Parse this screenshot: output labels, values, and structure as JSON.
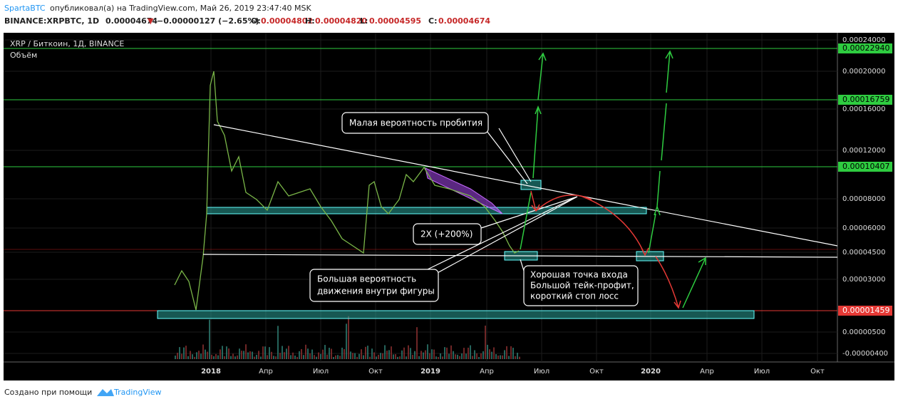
{
  "header": {
    "author": "SpartaBTC",
    "published": "опубликовал(а) на TradingView.com, Май 26, 2019 23:47:40 MSK",
    "symbol": "BINANCE:XRPBTC, 1D",
    "last": "0.00004674",
    "change": "−0.00000127 (−2.65%)",
    "open_label": "O:",
    "open": "0.00004802",
    "high_label": "H:",
    "high": "0.00004820",
    "low_label": "L:",
    "low": "0.00004595",
    "close_label": "C:",
    "close": "0.00004674"
  },
  "legend": {
    "pair": "XRP / Биткоин, 1Д, BINANCE",
    "volume": "Объём"
  },
  "price_axis": [
    "0.00024000",
    "0.00020000",
    "0.00016000",
    "0.00012000",
    "0.00008000",
    "0.00006000",
    "0.00004500",
    "0.00003000",
    "0.00000500",
    "-0.00000400"
  ],
  "price_markers": {
    "target_high": "0.00022940",
    "target_mid": "0.00016759",
    "target_low": "0.00010407",
    "support": "0.00001459"
  },
  "time_axis": [
    "2018",
    "Апр",
    "Июл",
    "Окт",
    "2019",
    "Апр",
    "Июл",
    "Окт",
    "2020",
    "Апр",
    "Июл",
    "Окт"
  ],
  "annotations": {
    "low_breakout": "Малая вероятность пробития",
    "double": "2X (+200%)",
    "inside_1": "Большая вероятность",
    "inside_2": "движения внутри фигуры",
    "entry_1": "Хорошая точка входа",
    "entry_2": "Большой тейк-профит,",
    "entry_3": "короткий стоп лосс"
  },
  "footer": {
    "made_with": "Создано при помощи",
    "brand": "TradingView"
  }
}
